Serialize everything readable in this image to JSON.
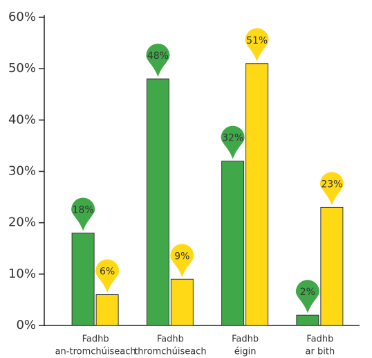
{
  "chart_data": {
    "type": "bar",
    "categories": [
      [
        "Fadhb",
        "an-tromchúiseach"
      ],
      [
        "Fadhb",
        "thromchúiseach"
      ],
      [
        "Fadhb",
        "éigin"
      ],
      [
        "Fadhb",
        "ar bith"
      ]
    ],
    "series": [
      {
        "color": "#41a849",
        "values": [
          18,
          48,
          32,
          2
        ],
        "value_labels": [
          "18%",
          "48%",
          "32%",
          "2%"
        ]
      },
      {
        "color": "#ffd916",
        "values": [
          6,
          9,
          51,
          23
        ],
        "value_labels": [
          "6%",
          "9%",
          "51%",
          "23%"
        ]
      }
    ],
    "ylim": [
      0,
      60
    ],
    "yticks": [
      {
        "value": 0,
        "label": "0%"
      },
      {
        "value": 10,
        "label": "10%"
      },
      {
        "value": 20,
        "label": "20%"
      },
      {
        "value": 30,
        "label": "30%"
      },
      {
        "value": 40,
        "label": "40%"
      },
      {
        "value": 50,
        "label": "50%"
      },
      {
        "value": 60,
        "label": "60%"
      }
    ]
  }
}
